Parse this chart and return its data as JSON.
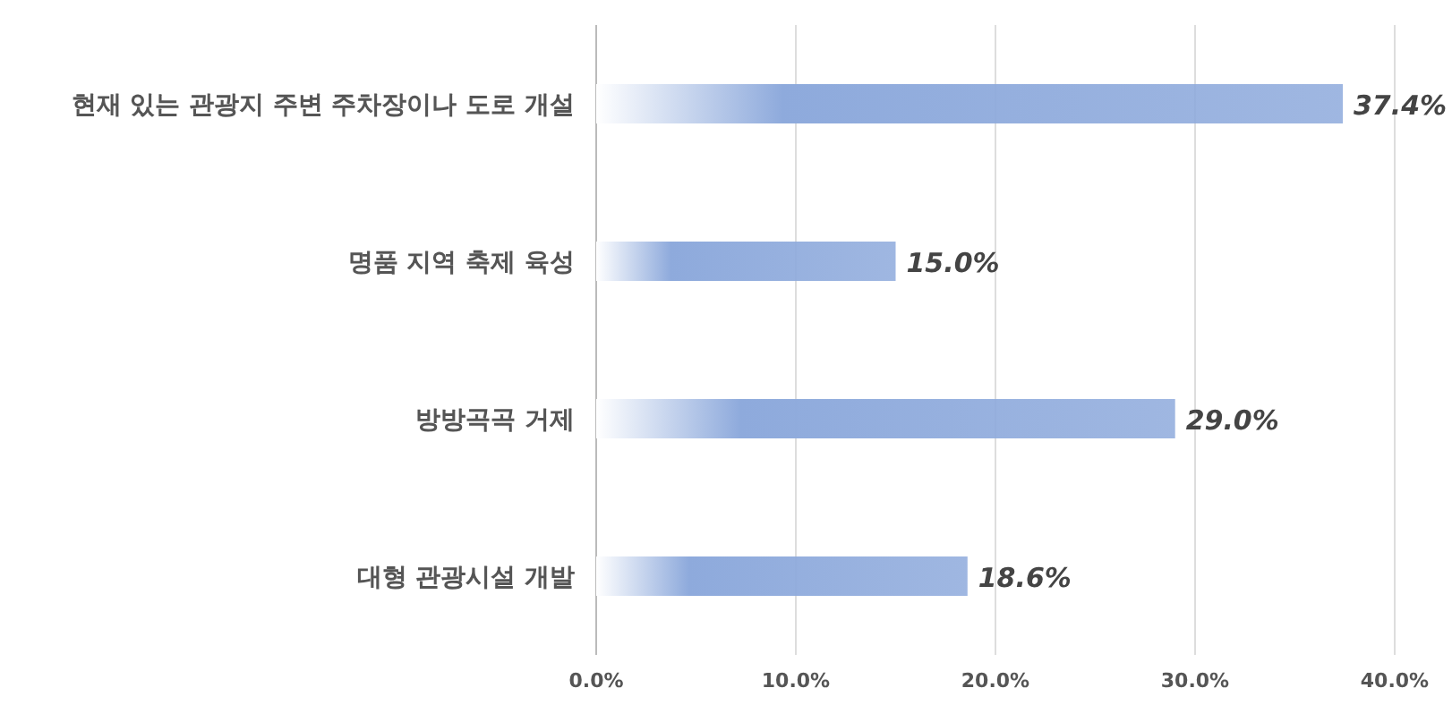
{
  "chart_data": {
    "type": "bar",
    "orientation": "horizontal",
    "categories": [
      "현재 있는 관광지 주변 주차장이나 도로 개설",
      "명품 지역 축제 육성",
      "방방곡곡 거제",
      "대형 관광시설 개발"
    ],
    "values": [
      37.4,
      15.0,
      29.0,
      18.6
    ],
    "value_labels": [
      "37.4%",
      "15.0%",
      "29.0%",
      "18.6%"
    ],
    "color": "#8eaadc",
    "xlim": [
      0,
      40
    ],
    "xticks": [
      {
        "value": 0,
        "label": "0.0%"
      },
      {
        "value": 10,
        "label": "10.0%"
      },
      {
        "value": 20,
        "label": "20.0%"
      },
      {
        "value": 30,
        "label": "30.0%"
      },
      {
        "value": 40,
        "label": "40.0%"
      }
    ],
    "grid": "x"
  }
}
